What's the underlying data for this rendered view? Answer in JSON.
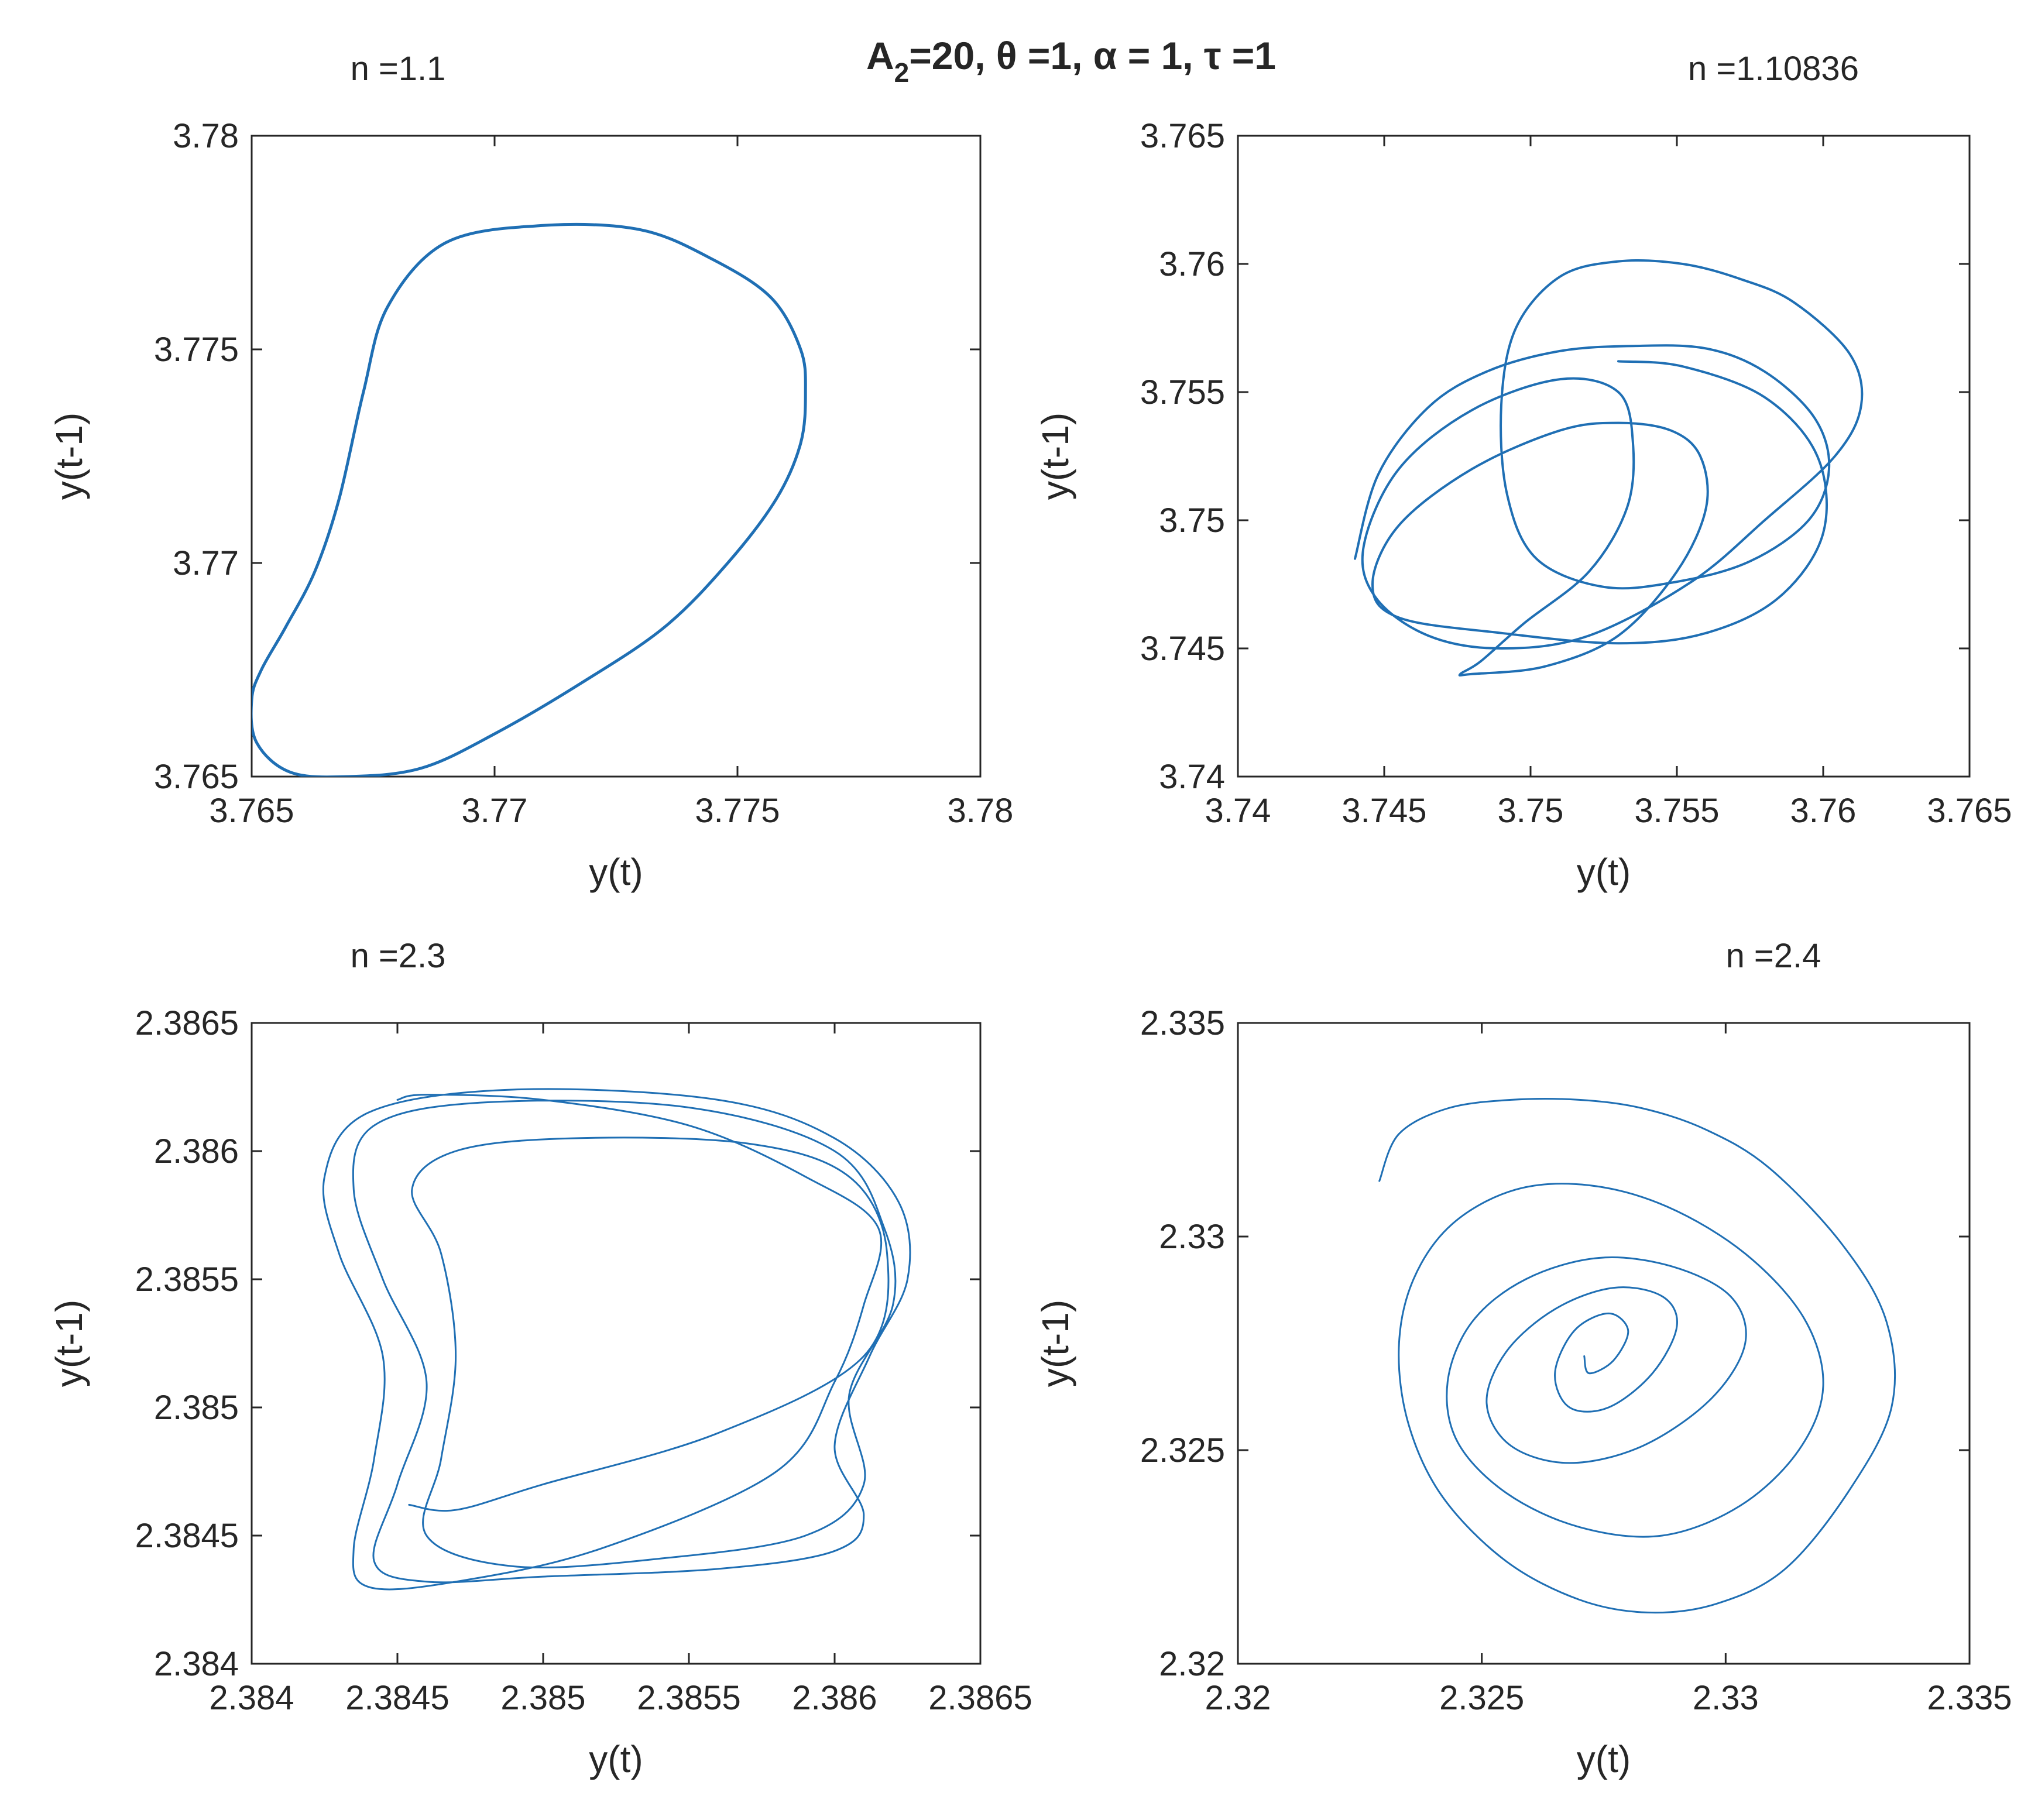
{
  "figure_title": {
    "prefix": "A",
    "subscript": "2",
    "rest": "=20, θ =1, α = 1, τ =1"
  },
  "colors": {
    "series": "#1f6fb4",
    "axes": "#262626",
    "background": "#ffffff"
  },
  "chart_data": [
    {
      "type": "line",
      "title": "n =1.1",
      "title_align": "left",
      "xlabel": "y(t)",
      "ylabel": "y(t-1)",
      "xlim": [
        3.765,
        3.78
      ],
      "ylim": [
        3.765,
        3.78
      ],
      "xticks": [
        3.765,
        3.77,
        3.775,
        3.78
      ],
      "xtick_labels": [
        "3.765",
        "3.77",
        "3.775",
        "3.78"
      ],
      "yticks": [
        3.765,
        3.77,
        3.775,
        3.78
      ],
      "ytick_labels": [
        "3.765",
        "3.77",
        "3.775",
        "3.78"
      ],
      "series": [
        {
          "name": "orbit",
          "closed": true,
          "x": [
            3.771,
            3.773,
            3.7745,
            3.7757,
            3.7763,
            3.7764,
            3.7763,
            3.7758,
            3.7748,
            3.7735,
            3.7718,
            3.77,
            3.7685,
            3.767,
            3.7658,
            3.7651,
            3.765,
            3.7652,
            3.7657,
            3.7663,
            3.7668,
            3.7673,
            3.7678,
            3.769
          ],
          "y": [
            3.7779,
            3.7778,
            3.7771,
            3.7762,
            3.775,
            3.774,
            3.7728,
            3.7715,
            3.77,
            3.7685,
            3.7672,
            3.766,
            3.7652,
            3.765,
            3.7651,
            3.7658,
            3.7668,
            3.7675,
            3.7685,
            3.7698,
            3.7715,
            3.774,
            3.776,
            3.7775
          ]
        }
      ]
    },
    {
      "type": "line",
      "title": "n =1.10836",
      "title_align": "right",
      "xlabel": "y(t)",
      "ylabel": "y(t-1)",
      "xlim": [
        3.74,
        3.765
      ],
      "ylim": [
        3.74,
        3.765
      ],
      "xticks": [
        3.74,
        3.745,
        3.75,
        3.755,
        3.76,
        3.765
      ],
      "xtick_labels": [
        "3.74",
        "3.745",
        "3.75",
        "3.755",
        "3.76",
        "3.765"
      ],
      "yticks": [
        3.74,
        3.745,
        3.75,
        3.755,
        3.76,
        3.765
      ],
      "ytick_labels": [
        "3.74",
        "3.745",
        "3.75",
        "3.755",
        "3.76",
        "3.765"
      ],
      "series": [
        {
          "name": "orbit",
          "closed": false,
          "x": [
            3.744,
            3.7448,
            3.7465,
            3.7485,
            3.751,
            3.7535,
            3.756,
            3.758,
            3.7597,
            3.7602,
            3.7595,
            3.7575,
            3.755,
            3.7525,
            3.7502,
            3.7492,
            3.749,
            3.7495,
            3.751,
            3.753,
            3.7552,
            3.7572,
            3.759,
            3.7609,
            3.7613,
            3.7604,
            3.758,
            3.7555,
            3.752,
            3.749,
            3.7465,
            3.7447,
            3.7443,
            3.7455,
            3.748,
            3.751,
            3.753,
            3.7535,
            3.7533,
            3.752,
            3.7498,
            3.7483,
            3.7476,
            3.748,
            3.7505,
            3.753,
            3.755,
            3.756,
            3.7558,
            3.7548,
            3.753,
            3.751,
            3.748,
            3.7455,
            3.7446,
            3.7455,
            3.749,
            3.753,
            3.756,
            3.7585,
            3.76,
            3.7598,
            3.758,
            3.7552,
            3.753
          ],
          "y": [
            3.7485,
            3.7518,
            3.7544,
            3.7558,
            3.7566,
            3.7568,
            3.7567,
            3.7558,
            3.754,
            3.752,
            3.75,
            3.7484,
            3.7476,
            3.7474,
            3.7485,
            3.751,
            3.7545,
            3.7575,
            3.7595,
            3.7601,
            3.76,
            3.7594,
            3.7585,
            3.7565,
            3.7545,
            3.7525,
            3.75,
            3.7476,
            3.7455,
            3.745,
            3.7455,
            3.747,
            3.749,
            3.752,
            3.7543,
            3.7555,
            3.755,
            3.753,
            3.7505,
            3.748,
            3.746,
            3.7445,
            3.744,
            3.744,
            3.7443,
            3.7455,
            3.748,
            3.7505,
            3.7525,
            3.7535,
            3.7538,
            3.7535,
            3.752,
            3.7498,
            3.7475,
            3.7462,
            3.7456,
            3.7452,
            3.7456,
            3.747,
            3.7495,
            3.7525,
            3.7548,
            3.756,
            3.7562
          ]
        }
      ]
    },
    {
      "type": "line",
      "title": "n =2.3",
      "title_align": "left",
      "xlabel": "y(t)",
      "ylabel": "y(t-1)",
      "xlim": [
        2.384,
        2.3865
      ],
      "ylim": [
        2.384,
        2.3865
      ],
      "xticks": [
        2.384,
        2.3845,
        2.385,
        2.3855,
        2.386,
        2.3865
      ],
      "xtick_labels": [
        "2.384",
        "2.3845",
        "2.385",
        "2.3855",
        "2.386",
        "2.3865"
      ],
      "yticks": [
        2.384,
        2.3845,
        2.385,
        2.3855,
        2.386,
        2.3865
      ],
      "ytick_labels": [
        "2.384",
        "2.3845",
        "2.385",
        "2.3855",
        "2.386",
        "2.3865"
      ],
      "series": [
        {
          "name": "orbit",
          "closed": false,
          "x": [
            2.3845,
            2.3846,
            2.385,
            2.3855,
            2.3859,
            2.38615,
            2.3861,
            2.386,
            2.3858,
            2.3852,
            2.3847,
            2.3844,
            2.38435,
            2.38442,
            2.38445,
            2.3843,
            2.38425,
            2.3844,
            2.3849,
            2.3856,
            2.386,
            2.38622,
            2.38625,
            2.38612,
            2.386,
            2.3861,
            2.386,
            2.3856,
            2.385,
            2.3846,
            2.38442,
            2.3845,
            2.3846,
            2.38445,
            2.38435,
            2.38442,
            2.3848,
            2.3855,
            2.386,
            2.38617,
            2.3862,
            2.38605,
            2.3861,
            2.3859,
            2.3854,
            2.3849,
            2.3846,
            2.38465,
            2.3847,
            2.38465,
            2.38455,
            2.3847,
            2.3851,
            2.3857,
            2.38605,
            2.38618,
            2.3861,
            2.3856,
            2.385,
            2.3847,
            2.38454
          ],
          "y": [
            2.3862,
            2.38622,
            2.3862,
            2.3861,
            2.3859,
            2.3857,
            2.3854,
            2.3851,
            2.38475,
            2.38445,
            2.38432,
            2.3843,
            2.38445,
            2.3848,
            2.3852,
            2.3856,
            2.3859,
            2.38615,
            2.38624,
            2.3862,
            2.38605,
            2.3858,
            2.3855,
            2.3852,
            2.38485,
            2.38458,
            2.38444,
            2.38437,
            2.38434,
            2.38432,
            2.3844,
            2.3847,
            2.3851,
            2.3855,
            2.38585,
            2.3861,
            2.38619,
            2.38617,
            2.386,
            2.3857,
            2.3854,
            2.38505,
            2.3847,
            2.3845,
            2.38441,
            2.38438,
            2.3845,
            2.3848,
            2.3852,
            2.3856,
            2.38585,
            2.386,
            2.38605,
            2.38603,
            2.3859,
            2.3856,
            2.3852,
            2.3849,
            2.3847,
            2.3846,
            2.38462
          ]
        }
      ]
    },
    {
      "type": "line",
      "title": "n =2.4",
      "title_align": "right",
      "xlabel": "y(t)",
      "ylabel": "y(t-1)",
      "xlim": [
        2.32,
        2.335
      ],
      "ylim": [
        2.32,
        2.335
      ],
      "xticks": [
        2.32,
        2.325,
        2.33,
        2.335
      ],
      "xtick_labels": [
        "2.32",
        "2.325",
        "2.33",
        "2.335"
      ],
      "yticks": [
        2.32,
        2.325,
        2.33,
        2.335
      ],
      "ytick_labels": [
        "2.32",
        "2.325",
        "2.33",
        "2.335"
      ],
      "series": [
        {
          "name": "orbit",
          "closed": false,
          "x": [
            2.3229,
            2.3233,
            2.3243,
            2.3256,
            2.327,
            2.3283,
            2.3296,
            2.3309,
            2.3324,
            2.3333,
            2.3334,
            2.3325,
            2.3312,
            2.3298,
            2.3284,
            2.327,
            2.3255,
            2.3242,
            2.3235,
            2.3233,
            2.3236,
            2.3244,
            2.3257,
            2.3272,
            2.3288,
            2.3304,
            2.3316,
            2.332,
            2.3315,
            2.3303,
            2.3287,
            2.327,
            2.3255,
            2.3245,
            2.3243,
            2.3248,
            2.3259,
            2.3274,
            2.3289,
            2.3301,
            2.3304,
            2.3297,
            2.3283,
            2.3268,
            2.3256,
            2.3251,
            2.3255,
            2.3265,
            2.3277,
            2.3287,
            2.329,
            2.3285,
            2.3276,
            2.3268,
            2.3265,
            2.3269,
            2.3276,
            2.328,
            2.3277,
            2.3272,
            2.3271
          ],
          "y": [
            2.3313,
            2.3324,
            2.333,
            2.3332,
            2.3332,
            2.333,
            2.3325,
            2.3316,
            2.3298,
            2.328,
            2.326,
            2.324,
            2.3222,
            2.3214,
            2.3212,
            2.3215,
            2.3224,
            2.3239,
            2.3256,
            2.3274,
            2.329,
            2.3303,
            2.3311,
            2.3312,
            2.3307,
            2.3296,
            2.3281,
            2.3265,
            2.325,
            2.3237,
            2.323,
            2.3232,
            2.324,
            2.3252,
            2.3266,
            2.328,
            2.329,
            2.3295,
            2.3293,
            2.3286,
            2.3275,
            2.3262,
            2.3251,
            2.3247,
            2.3251,
            2.3261,
            2.3273,
            2.3283,
            2.3288,
            2.3286,
            2.3279,
            2.3268,
            2.326,
            2.326,
            2.3268,
            2.3278,
            2.3282,
            2.3278,
            2.3271,
            2.3268,
            2.3272
          ]
        }
      ]
    }
  ]
}
